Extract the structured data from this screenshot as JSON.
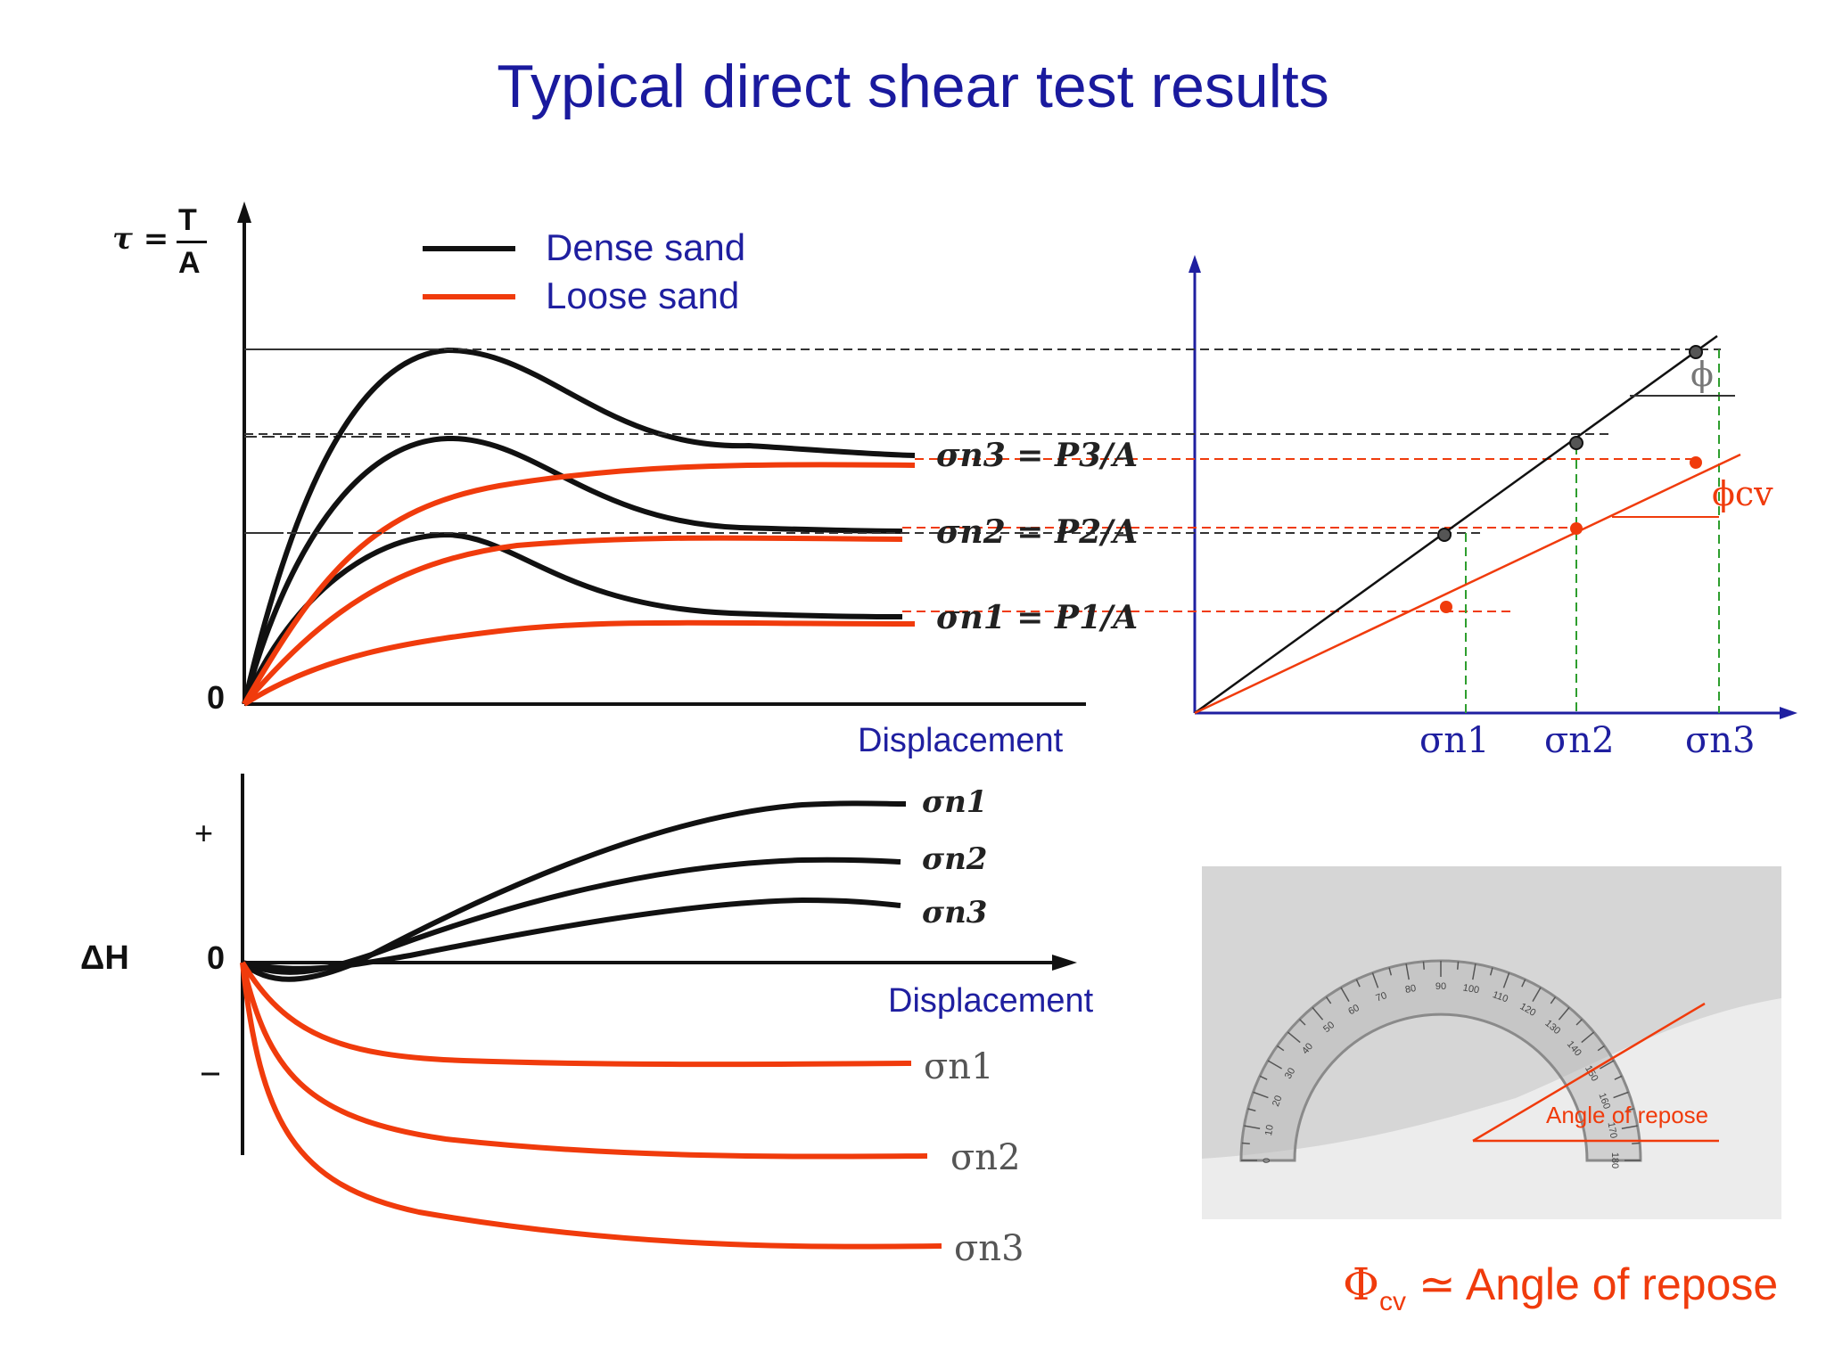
{
  "title": "Typical direct shear test results",
  "legend": [
    {
      "label": "Dense sand",
      "color": "#111111"
    },
    {
      "label": "Loose sand",
      "color": "#f03b0c"
    }
  ],
  "colors": {
    "dense": "#111111",
    "loose": "#f03b0c",
    "axis_blue": "#1f1fa0",
    "guide_green": "#2e9e2e",
    "guide_red": "#f03b0c"
  },
  "shear_plot": {
    "y_axis_label_left": "τ =",
    "y_axis_label_num": "T",
    "y_axis_label_den": "A",
    "origin_label": "0",
    "x_axis_label": "Displacement",
    "curve_labels": [
      "σn3 = P3/A",
      "σn2 = P2/A",
      "σn1 = P1/A"
    ]
  },
  "volume_plot": {
    "y_axis_label": "ΔH",
    "plus_label": "+",
    "minus_label": "–",
    "origin_label": "0",
    "x_axis_label": "Displacement",
    "dense_labels": [
      "σn1",
      "σn2",
      "σn3"
    ],
    "loose_labels": [
      "σn1",
      "σn2",
      "σn3"
    ]
  },
  "envelope_plot": {
    "x_tick_labels": [
      "σn1",
      "σn2",
      "σn3"
    ],
    "phi_label": "ϕ",
    "phi_cv_label": "ϕcv"
  },
  "photo": {
    "caption": "Angle of repose",
    "scale_marks": [
      "0",
      "10",
      "20",
      "30",
      "40",
      "50",
      "60",
      "70",
      "80",
      "90",
      "100",
      "110",
      "120",
      "130",
      "140",
      "150",
      "160",
      "170",
      "180"
    ]
  },
  "footnote": {
    "symbol": "Φ",
    "subscript": "cv",
    "text": "≃ Angle of repose"
  }
}
